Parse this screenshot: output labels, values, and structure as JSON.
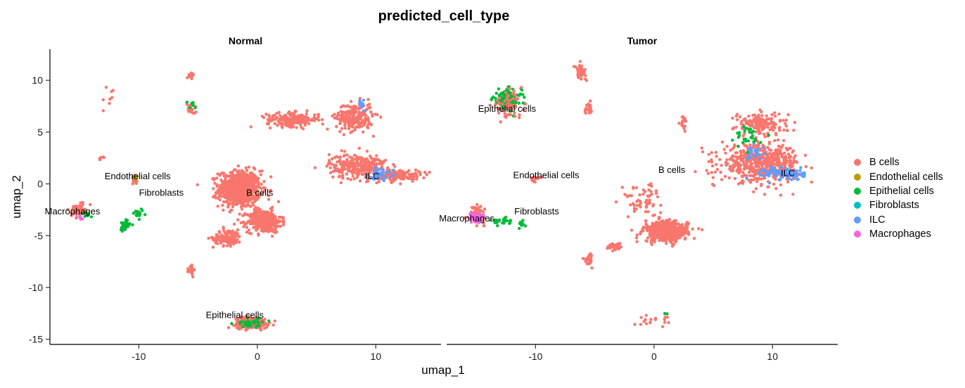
{
  "chart_data": {
    "type": "scatter",
    "title": "predicted_cell_type",
    "xlabel": "umap_1",
    "ylabel": "umap_2",
    "xlim": [
      -17.5,
      15.5
    ],
    "ylim": [
      -15.5,
      13
    ],
    "x_ticks": [
      -10,
      0,
      10
    ],
    "y_ticks": [
      10,
      5,
      0,
      -5,
      -10,
      -15
    ],
    "grid": false,
    "legend_position": "right",
    "legend": [
      {
        "name": "B cells",
        "color": "#F8766D"
      },
      {
        "name": "Endothelial cells",
        "color": "#B79F00"
      },
      {
        "name": "Epithelial cells",
        "color": "#00BA38"
      },
      {
        "name": "Fibroblasts",
        "color": "#00BFC4"
      },
      {
        "name": "ILC",
        "color": "#619CFF"
      },
      {
        "name": "Macrophages",
        "color": "#F564E3"
      }
    ],
    "facets": [
      {
        "name": "Normal",
        "labels": [
          {
            "text": "Endothelial cells",
            "x": -10.1,
            "y": 0.8
          },
          {
            "text": "Fibroblasts",
            "x": -8.1,
            "y": -0.8
          },
          {
            "text": "Macrophages",
            "x": -15.6,
            "y": -2.6
          },
          {
            "text": "B cells",
            "x": 0.2,
            "y": -0.8
          },
          {
            "text": "ILC",
            "x": 9.7,
            "y": 0.8
          },
          {
            "text": "Epithelial cells",
            "x": -1.9,
            "y": -12.6
          }
        ],
        "clusters": [
          {
            "type": "B cells",
            "cx": -1.5,
            "cy": -0.5,
            "sx": 1.6,
            "sy": 1.6,
            "n": 700
          },
          {
            "type": "B cells",
            "cx": 0.6,
            "cy": -3.6,
            "sx": 1.3,
            "sy": 1.0,
            "n": 380
          },
          {
            "type": "B cells",
            "cx": -2.5,
            "cy": -5.2,
            "sx": 1.1,
            "sy": 0.7,
            "n": 110
          },
          {
            "type": "B cells",
            "cx": 3.0,
            "cy": 6.2,
            "sx": 2.0,
            "sy": 0.6,
            "n": 200
          },
          {
            "type": "B cells",
            "cx": 8.2,
            "cy": 6.5,
            "sx": 1.4,
            "sy": 1.2,
            "n": 240
          },
          {
            "type": "B cells",
            "cx": 8.5,
            "cy": 1.7,
            "sx": 2.2,
            "sy": 1.1,
            "n": 280
          },
          {
            "type": "B cells",
            "cx": 12.0,
            "cy": 0.8,
            "sx": 1.6,
            "sy": 0.5,
            "n": 120
          },
          {
            "type": "B cells",
            "cx": -0.5,
            "cy": -13.4,
            "sx": 1.3,
            "sy": 0.5,
            "n": 260
          },
          {
            "type": "B cells",
            "cx": -15.1,
            "cy": -2.6,
            "sx": 0.5,
            "sy": 0.5,
            "n": 80
          },
          {
            "type": "B cells",
            "cx": -10.4,
            "cy": 0.4,
            "sx": 0.3,
            "sy": 0.4,
            "n": 30
          },
          {
            "type": "B cells",
            "cx": -5.6,
            "cy": 7.3,
            "sx": 0.3,
            "sy": 0.5,
            "n": 30
          },
          {
            "type": "B cells",
            "cx": -5.6,
            "cy": 10.4,
            "sx": 0.3,
            "sy": 0.3,
            "n": 12
          },
          {
            "type": "B cells",
            "cx": -5.5,
            "cy": -8.3,
            "sx": 0.3,
            "sy": 0.5,
            "n": 18
          },
          {
            "type": "B cells",
            "cx": -12.5,
            "cy": 8.0,
            "sx": 0.3,
            "sy": 1.0,
            "n": 8
          },
          {
            "type": "B cells",
            "cx": -13.2,
            "cy": 2.5,
            "sx": 0.2,
            "sy": 0.2,
            "n": 6
          },
          {
            "type": "Epithelial cells",
            "cx": -11.2,
            "cy": -4.0,
            "sx": 0.4,
            "sy": 0.5,
            "n": 35
          },
          {
            "type": "Epithelial cells",
            "cx": -10.0,
            "cy": -2.9,
            "sx": 0.6,
            "sy": 0.4,
            "n": 18
          },
          {
            "type": "Epithelial cells",
            "cx": -0.5,
            "cy": -13.4,
            "sx": 1.2,
            "sy": 0.4,
            "n": 40
          },
          {
            "type": "Epithelial cells",
            "cx": -14.4,
            "cy": -3.0,
            "sx": 0.4,
            "sy": 0.3,
            "n": 10
          },
          {
            "type": "Epithelial cells",
            "cx": -5.6,
            "cy": 7.5,
            "sx": 0.3,
            "sy": 0.4,
            "n": 6
          },
          {
            "type": "ILC",
            "cx": 10.4,
            "cy": 1.0,
            "sx": 1.0,
            "sy": 0.5,
            "n": 35
          },
          {
            "type": "ILC",
            "cx": 8.8,
            "cy": 7.6,
            "sx": 0.4,
            "sy": 0.5,
            "n": 10
          },
          {
            "type": "Macrophages",
            "cx": -14.8,
            "cy": -3.3,
            "sx": 0.3,
            "sy": 0.2,
            "n": 5
          },
          {
            "type": "Endothelial cells",
            "cx": -10.2,
            "cy": 0.6,
            "sx": 0.2,
            "sy": 0.2,
            "n": 4
          }
        ]
      },
      {
        "name": "Tumor",
        "labels": [
          {
            "text": "Epithelial cells",
            "x": -12.4,
            "y": 7.3
          },
          {
            "text": "Endothelial cells",
            "x": -9.1,
            "y": 0.9
          },
          {
            "text": "B cells",
            "x": 1.5,
            "y": 1.4
          },
          {
            "text": "ILC",
            "x": 11.3,
            "y": 1.1
          },
          {
            "text": "Fibroblasts",
            "x": -9.9,
            "y": -2.6
          },
          {
            "text": "Macrophages",
            "x": -15.8,
            "y": -3.3
          }
        ],
        "clusters": [
          {
            "type": "Epithelial cells",
            "cx": -12.4,
            "cy": 8.1,
            "sx": 1.1,
            "sy": 0.9,
            "n": 170
          },
          {
            "type": "B cells",
            "cx": -12.4,
            "cy": 7.6,
            "sx": 1.2,
            "sy": 1.1,
            "n": 60
          },
          {
            "type": "B cells",
            "cx": 9.0,
            "cy": 2.0,
            "sx": 3.0,
            "sy": 1.6,
            "n": 550
          },
          {
            "type": "B cells",
            "cx": 9.0,
            "cy": 5.8,
            "sx": 2.0,
            "sy": 1.0,
            "n": 150
          },
          {
            "type": "ILC",
            "cx": 11.0,
            "cy": 1.0,
            "sx": 1.6,
            "sy": 0.6,
            "n": 100
          },
          {
            "type": "ILC",
            "cx": 8.5,
            "cy": 3.0,
            "sx": 0.8,
            "sy": 0.6,
            "n": 22
          },
          {
            "type": "Epithelial cells",
            "cx": 8.0,
            "cy": 4.5,
            "sx": 1.0,
            "sy": 1.0,
            "n": 30
          },
          {
            "type": "B cells",
            "cx": 1.0,
            "cy": -4.6,
            "sx": 1.7,
            "sy": 0.9,
            "n": 450
          },
          {
            "type": "B cells",
            "cx": -1.0,
            "cy": -1.5,
            "sx": 1.5,
            "sy": 1.5,
            "n": 60
          },
          {
            "type": "B cells",
            "cx": -6.2,
            "cy": 10.8,
            "sx": 0.4,
            "sy": 0.6,
            "n": 50
          },
          {
            "type": "B cells",
            "cx": -5.5,
            "cy": 7.3,
            "sx": 0.3,
            "sy": 0.5,
            "n": 25
          },
          {
            "type": "B cells",
            "cx": -10.0,
            "cy": 0.6,
            "sx": 0.4,
            "sy": 0.3,
            "n": 15
          },
          {
            "type": "B cells",
            "cx": -5.5,
            "cy": -7.3,
            "sx": 0.3,
            "sy": 0.5,
            "n": 25
          },
          {
            "type": "B cells",
            "cx": -3.2,
            "cy": -6.0,
            "sx": 0.6,
            "sy": 0.3,
            "n": 40
          },
          {
            "type": "B cells",
            "cx": 2.5,
            "cy": 6.0,
            "sx": 0.3,
            "sy": 0.6,
            "n": 20
          },
          {
            "type": "B cells",
            "cx": 0.0,
            "cy": -13.1,
            "sx": 1.5,
            "sy": 0.5,
            "n": 18
          },
          {
            "type": "B cells",
            "cx": -15.0,
            "cy": -3.0,
            "sx": 0.6,
            "sy": 0.7,
            "n": 80
          },
          {
            "type": "Macrophages",
            "cx": -15.0,
            "cy": -3.3,
            "sx": 0.5,
            "sy": 0.5,
            "n": 35
          },
          {
            "type": "Epithelial cells",
            "cx": -13.0,
            "cy": -3.6,
            "sx": 0.9,
            "sy": 0.3,
            "n": 25
          },
          {
            "type": "Epithelial cells",
            "cx": -11.2,
            "cy": -3.9,
            "sx": 0.3,
            "sy": 0.4,
            "n": 15
          },
          {
            "type": "Epithelial cells",
            "cx": 1.0,
            "cy": -12.5,
            "sx": 0.1,
            "sy": 0.1,
            "n": 3
          }
        ]
      }
    ]
  }
}
